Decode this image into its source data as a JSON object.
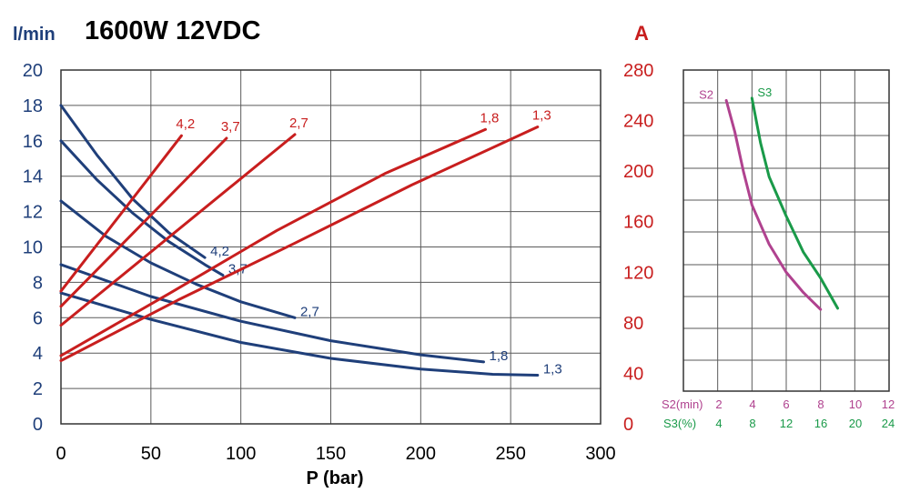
{
  "header": {
    "flow_unit": "l/min",
    "title": "1600W 12VDC",
    "current_unit": "A"
  },
  "colors": {
    "flow": "#1f3f7a",
    "current": "#c81e1e",
    "s2": "#b0428f",
    "s3": "#1a9a49"
  },
  "chart_data": [
    {
      "type": "line",
      "title": "1600W 12VDC",
      "xlabel": "P (bar)",
      "ylabel": "l/min",
      "y2label": "A",
      "xlim": [
        0,
        300
      ],
      "ylim": [
        0,
        20
      ],
      "y2lim": [
        0,
        280
      ],
      "xticks": [
        "0",
        "50",
        "100",
        "150",
        "200",
        "250",
        "300"
      ],
      "yticks": [
        "0",
        "2",
        "4",
        "6",
        "8",
        "10",
        "12",
        "14",
        "16",
        "18",
        "20"
      ],
      "y2ticks": [
        "0",
        "40",
        "80",
        "120",
        "160",
        "200",
        "240",
        "280"
      ],
      "grid": true,
      "flow_series": [
        {
          "name": "4,2",
          "x": [
            0,
            20,
            40,
            60,
            80
          ],
          "y": [
            18.0,
            15.2,
            12.7,
            10.8,
            9.4
          ]
        },
        {
          "name": "3,7",
          "x": [
            0,
            20,
            40,
            60,
            80,
            90
          ],
          "y": [
            16.0,
            13.8,
            11.9,
            10.3,
            9.0,
            8.4
          ]
        },
        {
          "name": "2,7",
          "x": [
            0,
            25,
            50,
            75,
            100,
            130
          ],
          "y": [
            12.6,
            10.6,
            9.1,
            7.9,
            6.9,
            6.0
          ]
        },
        {
          "name": "1,8",
          "x": [
            0,
            50,
            100,
            150,
            200,
            235
          ],
          "y": [
            9.0,
            7.2,
            5.8,
            4.7,
            3.9,
            3.5
          ]
        },
        {
          "name": "1,3",
          "x": [
            0,
            50,
            100,
            150,
            200,
            240,
            265
          ],
          "y": [
            7.4,
            5.9,
            4.6,
            3.7,
            3.1,
            2.8,
            2.75
          ]
        }
      ],
      "current_series": [
        {
          "name": "4,2",
          "x": [
            0,
            67
          ],
          "y": [
            105,
            228
          ]
        },
        {
          "name": "3,7",
          "x": [
            0,
            92
          ],
          "y": [
            93,
            226
          ]
        },
        {
          "name": "2,7",
          "x": [
            0,
            130
          ],
          "y": [
            78,
            229
          ]
        },
        {
          "name": "1,8",
          "x": [
            0,
            60,
            120,
            180,
            236
          ],
          "y": [
            54,
            103,
            153,
            198,
            233
          ]
        },
        {
          "name": "1,3",
          "x": [
            0,
            65,
            130,
            195,
            265
          ],
          "y": [
            50,
            98,
            143,
            189,
            235
          ]
        }
      ]
    },
    {
      "type": "line",
      "xlim": [
        0,
        12
      ],
      "ylim": [
        0,
        280
      ],
      "x1label": "S2(min)",
      "x1ticks": [
        "2",
        "4",
        "6",
        "8",
        "10",
        "12"
      ],
      "x2label": "S3(%)",
      "x2ticks": [
        "4",
        "8",
        "12",
        "16",
        "20",
        "24"
      ],
      "grid": true,
      "series": [
        {
          "name": "S2",
          "x": [
            2.5,
            3.0,
            3.5,
            4.0,
            5.0,
            6.0,
            7.0,
            8.0
          ],
          "y": [
            253,
            225,
            190,
            160,
            125,
            100,
            82,
            67
          ]
        },
        {
          "name": "S3",
          "x": [
            4.0,
            4.5,
            5.0,
            6.0,
            7.0,
            8.0,
            9.0
          ],
          "y": [
            255,
            215,
            185,
            150,
            118,
            95,
            68
          ]
        }
      ]
    }
  ]
}
